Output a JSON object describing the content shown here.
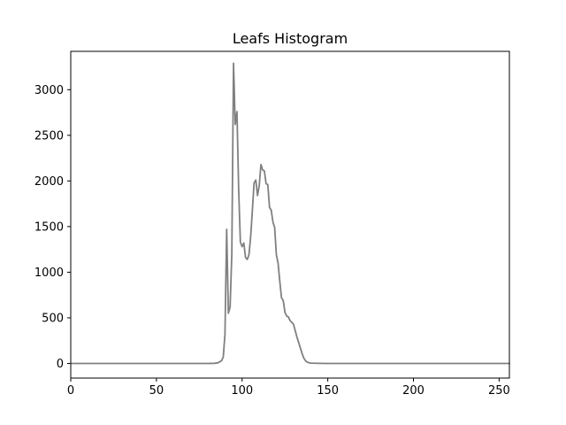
{
  "chart_data": {
    "type": "line",
    "title": "Leafs Histogram",
    "xlabel": "",
    "ylabel": "",
    "xlim": [
      0,
      256
    ],
    "ylim": [
      -160,
      3420
    ],
    "xticks": [
      0,
      50,
      100,
      150,
      200,
      250
    ],
    "yticks": [
      0,
      500,
      1000,
      1500,
      2000,
      2500,
      3000
    ],
    "xtick_labels": [
      "0",
      "50",
      "100",
      "150",
      "200",
      "250"
    ],
    "ytick_labels": [
      "0",
      "500",
      "1000",
      "1500",
      "2000",
      "2500",
      "3000"
    ],
    "grid": false,
    "series": [
      {
        "name": "",
        "color": "#808080",
        "points": [
          [
            0,
            0
          ],
          [
            80,
            0
          ],
          [
            84,
            2
          ],
          [
            86,
            8
          ],
          [
            88,
            30
          ],
          [
            89,
            70
          ],
          [
            90,
            320
          ],
          [
            91,
            1470
          ],
          [
            92,
            550
          ],
          [
            93,
            620
          ],
          [
            94,
            1200
          ],
          [
            95,
            3290
          ],
          [
            96,
            2620
          ],
          [
            97,
            2760
          ],
          [
            98,
            1900
          ],
          [
            99,
            1330
          ],
          [
            100,
            1280
          ],
          [
            101,
            1320
          ],
          [
            102,
            1160
          ],
          [
            103,
            1140
          ],
          [
            104,
            1190
          ],
          [
            105,
            1390
          ],
          [
            106,
            1680
          ],
          [
            107,
            1980
          ],
          [
            108,
            2010
          ],
          [
            109,
            1840
          ],
          [
            110,
            1950
          ],
          [
            111,
            2180
          ],
          [
            112,
            2120
          ],
          [
            113,
            2110
          ],
          [
            114,
            1970
          ],
          [
            115,
            1960
          ],
          [
            116,
            1710
          ],
          [
            117,
            1680
          ],
          [
            118,
            1550
          ],
          [
            119,
            1490
          ],
          [
            120,
            1190
          ],
          [
            121,
            1100
          ],
          [
            122,
            900
          ],
          [
            123,
            720
          ],
          [
            124,
            690
          ],
          [
            125,
            560
          ],
          [
            126,
            520
          ],
          [
            127,
            510
          ],
          [
            128,
            470
          ],
          [
            129,
            450
          ],
          [
            130,
            430
          ],
          [
            131,
            360
          ],
          [
            132,
            290
          ],
          [
            133,
            230
          ],
          [
            134,
            170
          ],
          [
            135,
            110
          ],
          [
            136,
            60
          ],
          [
            137,
            30
          ],
          [
            138,
            15
          ],
          [
            139,
            8
          ],
          [
            140,
            4
          ],
          [
            145,
            1
          ],
          [
            150,
            0
          ],
          [
            256,
            0
          ]
        ]
      }
    ]
  }
}
